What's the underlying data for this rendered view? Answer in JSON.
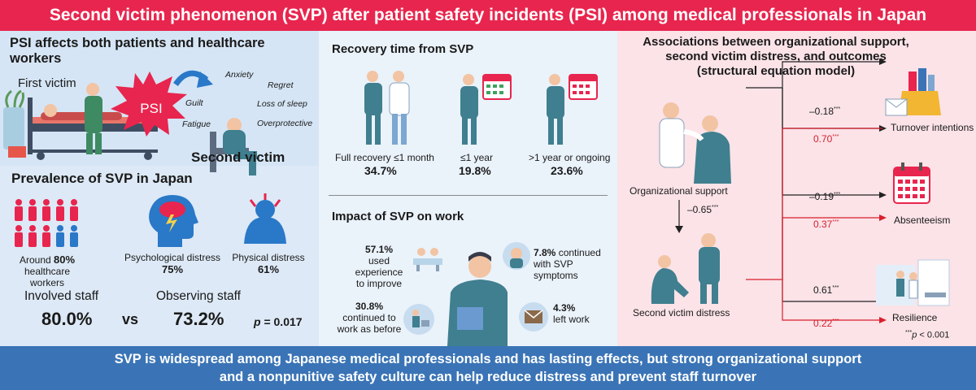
{
  "title": "Second victim phenomenon (SVP) after patient safety incidents (PSI) among medical professionals in Japan",
  "footer": {
    "line1": "SVP is widespread among Japanese medical professionals and has lasting effects, but strong organizational support",
    "line2": "and a nonpunitive safety culture can help reduce distress and prevent staff turnover"
  },
  "left": {
    "heading": "PSI affects both patients and healthcare workers",
    "first_victim": "First victim",
    "psi": "PSI",
    "second_victim": "Second victim",
    "symptoms": [
      "Anxiety",
      "Regret",
      "Guilt",
      "Loss of sleep",
      "Fatigue",
      "Overprotective"
    ],
    "prevalence_heading": "Prevalence of SVP in Japan",
    "stat1": {
      "prefix": "Around ",
      "value": "80%",
      "suffix": "healthcare workers"
    },
    "stat2": {
      "label": "Psychological distress",
      "value": "75%"
    },
    "stat3": {
      "label": "Physical distress",
      "value": "61%"
    },
    "compare": {
      "involved_label": "Involved staff",
      "involved_value": "80.0%",
      "vs": "vs",
      "observing_label": "Observing staff",
      "observing_value": "73.2%",
      "p_label": "p",
      "p_value": " = 0.017"
    }
  },
  "middle": {
    "recovery_heading": "Recovery time from SVP",
    "recovery": [
      {
        "label": "Full recovery ≤1 month",
        "value": "34.7%"
      },
      {
        "label": "≤1 year",
        "value": "19.8%"
      },
      {
        "label": ">1 year or ongoing",
        "value": "23.6%"
      }
    ],
    "impact_heading": "Impact of SVP on work",
    "impact": [
      {
        "value": "57.1%",
        "text": [
          "used experience",
          "to improve"
        ]
      },
      {
        "value": "7.8%",
        "text": [
          " continued",
          "with SVP",
          "symptoms"
        ]
      },
      {
        "value": "30.8%",
        "text": [
          "continued to",
          "work as before"
        ]
      },
      {
        "value": "4.3%",
        "text": [
          "left work"
        ]
      }
    ]
  },
  "right": {
    "heading": [
      "Associations between organizational support,",
      "second victim distress, and outcomes",
      "(structural equation model)"
    ],
    "org_support": "Organizational support",
    "distress": "Second victim distress",
    "path_coef": "–0.65",
    "stars": "***",
    "outcomes": [
      {
        "label": "Turnover intentions",
        "black": "–0.18",
        "red": "0.70"
      },
      {
        "label": "Absenteeism",
        "black": "–0.19",
        "red": "0.37"
      },
      {
        "label": "Resilience",
        "black": "0.61",
        "red": "0.22"
      }
    ],
    "note_stars": "***",
    "note_p": "p",
    "note_rest": " < 0.001"
  },
  "colors": {
    "banner_red": "#e8254e",
    "banner_blue": "#3a74b6",
    "coef_red": "#d81f2c",
    "scrub": "#3f7f8f"
  }
}
